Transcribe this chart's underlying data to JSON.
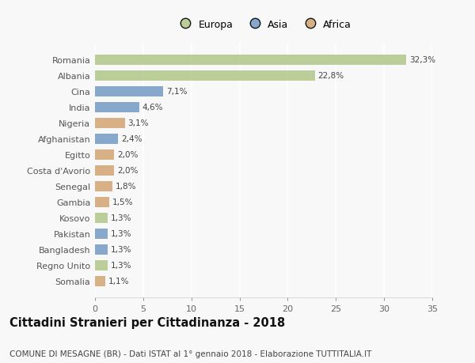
{
  "categories": [
    "Romania",
    "Albania",
    "Cina",
    "India",
    "Nigeria",
    "Afghanistan",
    "Egitto",
    "Costa d'Avorio",
    "Senegal",
    "Gambia",
    "Kosovo",
    "Pakistan",
    "Bangladesh",
    "Regno Unito",
    "Somalia"
  ],
  "values": [
    32.3,
    22.8,
    7.1,
    4.6,
    3.1,
    2.4,
    2.0,
    2.0,
    1.8,
    1.5,
    1.3,
    1.3,
    1.3,
    1.3,
    1.1
  ],
  "labels": [
    "32,3%",
    "22,8%",
    "7,1%",
    "4,6%",
    "3,1%",
    "2,4%",
    "2,0%",
    "2,0%",
    "1,8%",
    "1,5%",
    "1,3%",
    "1,3%",
    "1,3%",
    "1,3%",
    "1,1%"
  ],
  "continents": [
    "Europa",
    "Europa",
    "Asia",
    "Asia",
    "Africa",
    "Asia",
    "Africa",
    "Africa",
    "Africa",
    "Africa",
    "Europa",
    "Asia",
    "Asia",
    "Europa",
    "Africa"
  ],
  "colors": {
    "Europa": "#b5c98e",
    "Asia": "#7b9ec7",
    "Africa": "#d4a97a"
  },
  "legend_order": [
    "Europa",
    "Asia",
    "Africa"
  ],
  "title": "Cittadini Stranieri per Cittadinanza - 2018",
  "subtitle": "COMUNE DI MESAGNE (BR) - Dati ISTAT al 1° gennaio 2018 - Elaborazione TUTTITALIA.IT",
  "xlim": [
    0,
    35
  ],
  "xticks": [
    0,
    5,
    10,
    15,
    20,
    25,
    30,
    35
  ],
  "background_color": "#f8f8f8",
  "bar_height": 0.65,
  "title_fontsize": 10.5,
  "subtitle_fontsize": 7.5,
  "label_fontsize": 7.5,
  "ytick_fontsize": 8,
  "xtick_fontsize": 8
}
